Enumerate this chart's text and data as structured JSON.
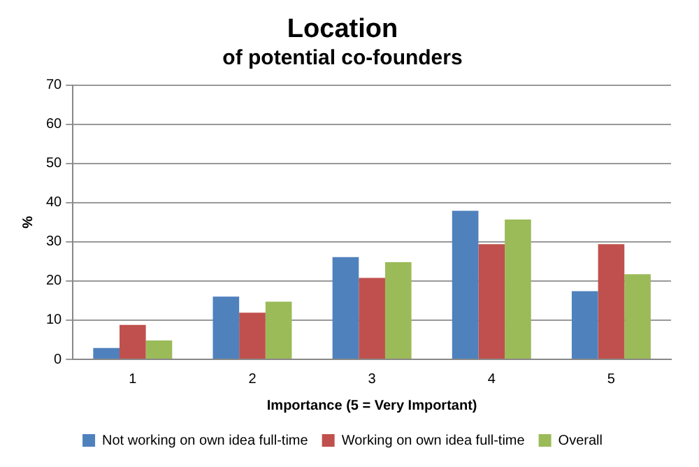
{
  "chart_data": {
    "type": "bar",
    "title": "Location",
    "subtitle": "of potential co-founders",
    "xlabel": "Importance (5 = Very Important)",
    "ylabel": "%",
    "categories": [
      "1",
      "2",
      "3",
      "4",
      "5"
    ],
    "series": [
      {
        "name": "Not working on own idea full-time",
        "color": "#4f81bd",
        "values": [
          2.9,
          16,
          26.1,
          37.9,
          17.4
        ]
      },
      {
        "name": "Working on own idea full-time",
        "color": "#c0504d",
        "values": [
          8.8,
          11.9,
          20.8,
          29.4,
          29.4
        ]
      },
      {
        "name": "Overall",
        "color": "#9bbb59",
        "values": [
          4.8,
          14.7,
          24.8,
          35.7,
          21.7
        ]
      }
    ],
    "ylim": [
      0,
      70
    ],
    "yticks": [
      0,
      10,
      20,
      30,
      40,
      50,
      60,
      70
    ],
    "grid": "y",
    "legend": "bottom"
  }
}
